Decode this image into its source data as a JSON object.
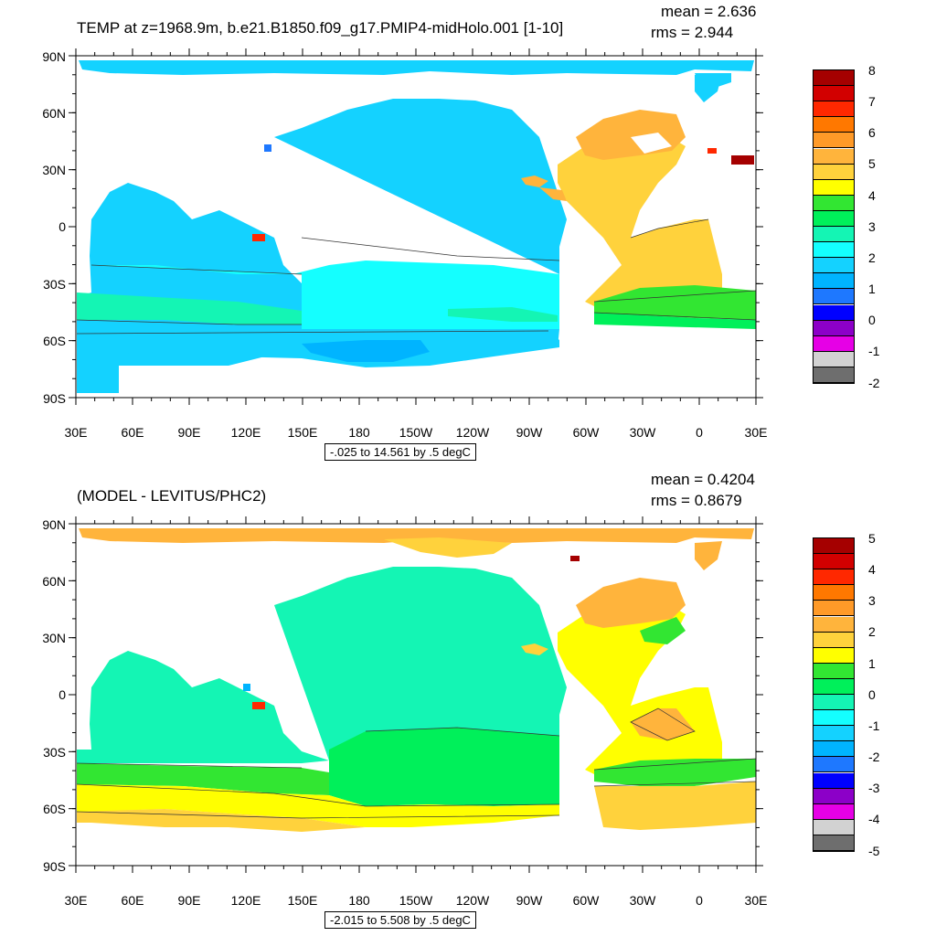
{
  "panels": [
    {
      "title": "TEMP at z=1968.9m, b.e21.B1850.f09_g17.PMIP4-midHolo.001 [1-10]",
      "mean_text": "mean = 2.636",
      "rms_text": "rms = 2.944",
      "range_text": "-.025 to 14.561 by .5 degC",
      "y_ticks": [
        "90N",
        "60N",
        "30N",
        "0",
        "30S",
        "60S",
        "90S"
      ],
      "x_ticks": [
        "30E",
        "60E",
        "90E",
        "120E",
        "150E",
        "180",
        "150W",
        "120W",
        "90W",
        "60W",
        "30W",
        "0",
        "30E"
      ],
      "colorbar_labels": [
        "8",
        "7",
        "6",
        "5",
        "4",
        "3",
        "2",
        "1",
        "0",
        "-1",
        "-2"
      ],
      "colorbar_colors": [
        "#a50000",
        "#d20000",
        "#ff2800",
        "#ff7800",
        "#ff9a28",
        "#ffb43c",
        "#ffd23c",
        "#ffff00",
        "#32e632",
        "#00f05a",
        "#14f5b4",
        "#14ffff",
        "#14d2ff",
        "#00b4ff",
        "#1e78ff",
        "#0000ff",
        "#8c00c8",
        "#e600e6",
        "#d2d2d2",
        "#6e6e6e"
      ]
    },
    {
      "title": "(MODEL - LEVITUS/PHC2)",
      "mean_text": "mean = 0.4204",
      "rms_text": "rms = 0.8679",
      "range_text": "-2.015 to 5.508 by .5 degC",
      "y_ticks": [
        "90N",
        "60N",
        "30N",
        "0",
        "30S",
        "60S",
        "90S"
      ],
      "x_ticks": [
        "30E",
        "60E",
        "90E",
        "120E",
        "150E",
        "180",
        "150W",
        "120W",
        "90W",
        "60W",
        "30W",
        "0",
        "30E"
      ],
      "colorbar_labels": [
        "5",
        "4",
        "3",
        "2",
        "1",
        "0",
        "-1",
        "-2",
        "-3",
        "-4",
        "-5"
      ],
      "colorbar_colors": [
        "#a50000",
        "#d20000",
        "#ff2800",
        "#ff7800",
        "#ff9a28",
        "#ffb43c",
        "#ffd23c",
        "#ffff00",
        "#32e632",
        "#00f05a",
        "#14f5b4",
        "#14ffff",
        "#14d2ff",
        "#00b4ff",
        "#1e78ff",
        "#0000ff",
        "#8c00c8",
        "#e600e6",
        "#d2d2d2",
        "#6e6e6e"
      ]
    }
  ],
  "map_colors": {
    "top": {
      "arctic": "#14d2ff",
      "pacific": "#14d2ff",
      "southern": "#14ffff",
      "southbelt": "#14f5b4",
      "antarctic_margin": "#14d2ff",
      "deep_patch": "#00b4ff",
      "atlantic": "#ffd23c",
      "atlantic_north": "#ffb43c",
      "atlantic_south_band": "#32e632",
      "hot_spot": "#ff2800"
    },
    "bottom": {
      "arctic": "#ffb43c",
      "arctic_mid": "#ffd23c",
      "pacific": "#14f5b4",
      "southern": "#00f05a",
      "southbelt": "#32e632",
      "southern_yellow": "#ffff00",
      "antarctic": "#ffd23c",
      "atlantic": "#ffff00",
      "atlantic_north": "#ffb43c",
      "atlantic_patch": "#ffb43c",
      "hot_spot": "#ff2800"
    }
  }
}
